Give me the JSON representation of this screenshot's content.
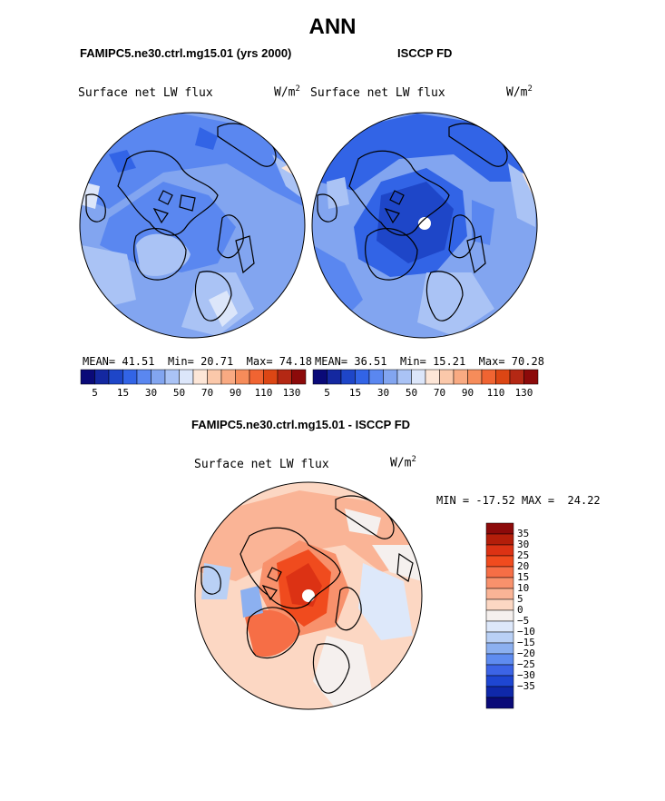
{
  "season": "ANN",
  "panels": [
    {
      "case_title": "FAMIPC5.ne30.ctrl.mg15.01 (yrs 2000)",
      "variable": "Surface net LW flux",
      "units": "W/m",
      "units_exp": "2",
      "stats": {
        "mean_label": "MEAN=",
        "mean": "41.51",
        "min_label": "Min=",
        "min": "20.71",
        "max_label": "Max=",
        "max": "74.18"
      }
    },
    {
      "case_title": "ISCCP FD",
      "variable": "Surface net LW flux",
      "units": "W/m",
      "units_exp": "2",
      "stats": {
        "mean_label": "MEAN=",
        "mean": "36.51",
        "min_label": "Min=",
        "min": "15.21",
        "max_label": "Max=",
        "max": "70.28"
      }
    }
  ],
  "abs_colorbar": {
    "ticks": [
      "5",
      "15",
      "30",
      "50",
      "70",
      "90",
      "110",
      "130"
    ],
    "colors": [
      "#0a0a78",
      "#1428a0",
      "#1e46c8",
      "#3264e6",
      "#5a87f0",
      "#82a5f0",
      "#aac3f5",
      "#dce6fa",
      "#fde6d7",
      "#fbc8aa",
      "#f9aa82",
      "#f68c5a",
      "#f06432",
      "#dc4614",
      "#b42814",
      "#8c0a0a"
    ]
  },
  "diff_panel": {
    "case_title": "FAMIPC5.ne30.ctrl.mg15.01 - ISCCP FD",
    "variable": "Surface net LW flux",
    "units": "W/m",
    "units_exp": "2",
    "min_label": "MIN =",
    "min": "-17.52",
    "max_label": "MAX =",
    "max": "24.22"
  },
  "diff_colorbar": {
    "labels": [
      "35",
      "30",
      "25",
      "20",
      "15",
      "10",
      "5",
      "0",
      "−5",
      "−10",
      "−15",
      "−20",
      "−25",
      "−30",
      "−35"
    ],
    "colors": [
      "#8c0a0a",
      "#b41e0a",
      "#dc3214",
      "#f04b1e",
      "#f66e46",
      "#f8916c",
      "#fab496",
      "#fcd7c3",
      "#f5f0ee",
      "#dde8fa",
      "#b9d0f5",
      "#8cb0f0",
      "#5f8cf0",
      "#3c64e6",
      "#1e46d2",
      "#0f28aa",
      "#0a0a78"
    ]
  }
}
